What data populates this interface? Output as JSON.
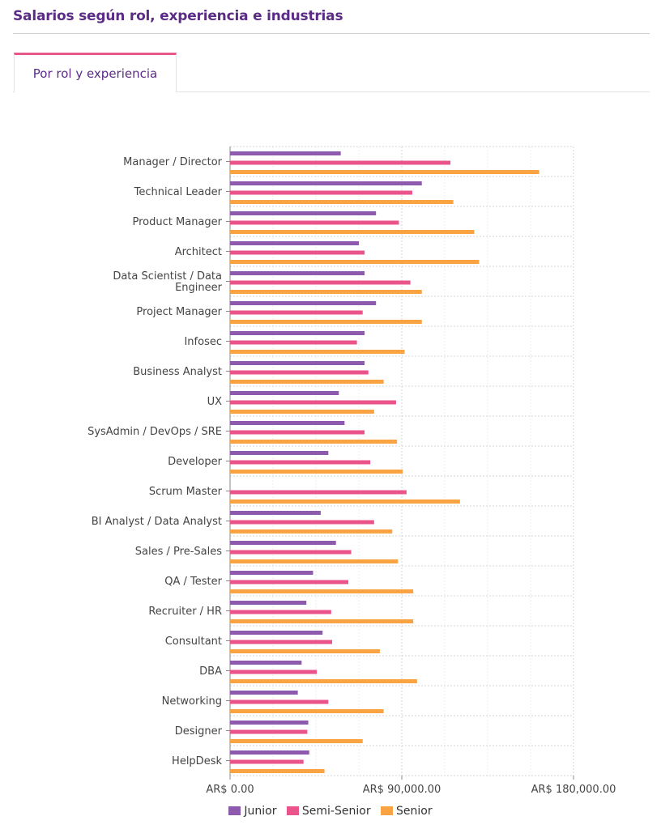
{
  "header": {
    "title": "Salarios según rol, experiencia e industrias"
  },
  "tabs": [
    {
      "label": "Por rol y experiencia"
    }
  ],
  "colors": {
    "Junior": "#8e5aad",
    "Semi-Senior": "#ea548a",
    "Senior": "#f9a342"
  },
  "chart_data": {
    "type": "bar",
    "orientation": "horizontal",
    "title": "",
    "xlabel": "",
    "ylabel": "",
    "xlim": [
      0,
      180000
    ],
    "x_ticks": [
      0,
      90000,
      180000
    ],
    "x_tick_labels": [
      "AR$ 0.00",
      "AR$ 90,000.00",
      "AR$ 180,000.00"
    ],
    "grid": true,
    "legend_position": "bottom",
    "categories": [
      [
        "Manager / Director"
      ],
      [
        "Technical Leader"
      ],
      [
        "Product Manager"
      ],
      [
        "Architect"
      ],
      [
        "Data Scientist / Data",
        "Engineer"
      ],
      [
        "Project Manager"
      ],
      [
        "Infosec"
      ],
      [
        "Business Analyst"
      ],
      [
        "UX"
      ],
      [
        "SysAdmin / DevOps / SRE"
      ],
      [
        "Developer"
      ],
      [
        "Scrum Master"
      ],
      [
        "BI Analyst / Data Analyst"
      ],
      [
        "Sales / Pre-Sales"
      ],
      [
        "QA / Tester"
      ],
      [
        "Recruiter / HR"
      ],
      [
        "Consultant"
      ],
      [
        "DBA"
      ],
      [
        "Networking"
      ],
      [
        "Designer"
      ],
      [
        "HelpDesk"
      ]
    ],
    "series": [
      {
        "name": "Junior",
        "values": [
          58000,
          100500,
          76500,
          67500,
          70500,
          76500,
          70500,
          70500,
          57000,
          60000,
          51500,
          null,
          47500,
          55500,
          43500,
          40000,
          48500,
          37500,
          35500,
          41000,
          41500
        ]
      },
      {
        "name": "Semi-Senior",
        "values": [
          115500,
          95500,
          88500,
          70500,
          94500,
          69500,
          66500,
          72500,
          87000,
          70500,
          73500,
          92500,
          75500,
          63500,
          62000,
          53000,
          53500,
          45500,
          51500,
          40500,
          38500
        ]
      },
      {
        "name": "Senior",
        "values": [
          162000,
          117000,
          128000,
          130500,
          100500,
          100500,
          91500,
          80500,
          75500,
          87500,
          90500,
          120500,
          85000,
          88000,
          96000,
          96000,
          78500,
          98000,
          80500,
          69500,
          49500
        ]
      }
    ]
  }
}
